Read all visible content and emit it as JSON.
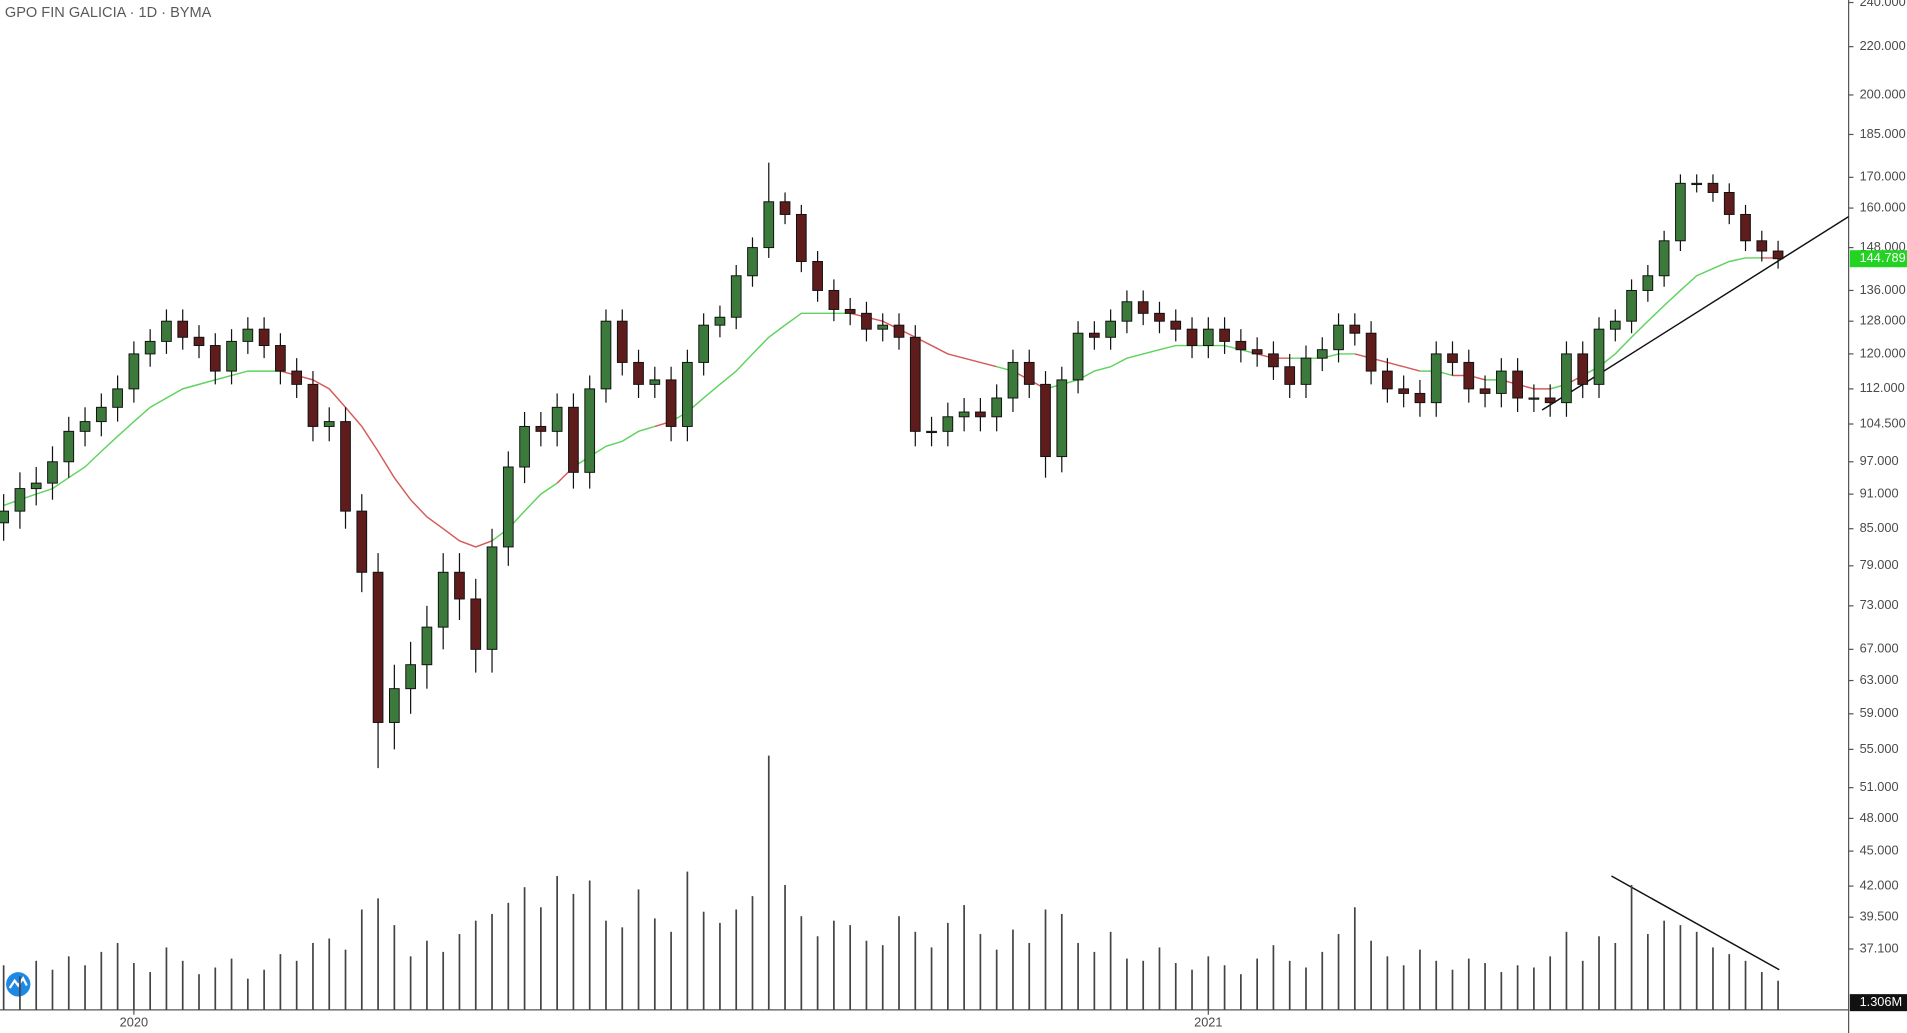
{
  "chart_data": {
    "type": "candlestick",
    "title": "GPO FIN GALICIA · 1D · BYMA",
    "log_scale": true,
    "up_color": "#3c7a3c",
    "down_color": "#5e1c1c",
    "ma_up_color": "#5fd35f",
    "ma_down_color": "#d65a5a",
    "volume_color": "#444444",
    "last_price_color": "#22d322",
    "categories": [
      null,
      null,
      null,
      null,
      null,
      null,
      null,
      null,
      "2020",
      null,
      null,
      null,
      null,
      null,
      null,
      null,
      null,
      null,
      null,
      null,
      null,
      null,
      null,
      null,
      null,
      null,
      null,
      null,
      null,
      null,
      null,
      null,
      null,
      null,
      null,
      null,
      null,
      null,
      null,
      null,
      null,
      null,
      null,
      null,
      null,
      null,
      null,
      null,
      null,
      null,
      null,
      null,
      null,
      null,
      null,
      null,
      null,
      null,
      null,
      null,
      null,
      null,
      null,
      null,
      null,
      null,
      null,
      null,
      null,
      null,
      null,
      null,
      null,
      null,
      "2021",
      null,
      null,
      null,
      null,
      null,
      null,
      null,
      null,
      null,
      null,
      null,
      null,
      null,
      null,
      null,
      null,
      null,
      null,
      null,
      null,
      null,
      null,
      null,
      null,
      null,
      null,
      null,
      null,
      null,
      null,
      null,
      null,
      null,
      null,
      null
    ],
    "open": [
      86,
      88,
      92,
      93,
      97,
      103,
      105,
      108,
      112,
      120,
      123,
      128,
      124,
      122,
      116,
      123,
      126,
      122,
      116,
      113,
      104,
      105,
      88,
      78,
      58,
      62,
      65,
      70,
      78,
      74,
      67,
      82,
      96,
      104,
      103,
      108,
      95,
      112,
      128,
      118,
      113,
      114,
      104,
      118,
      127,
      129,
      140,
      148,
      162,
      158,
      144,
      136,
      131,
      130,
      126,
      127,
      124,
      103,
      103,
      106,
      107,
      106,
      110,
      118,
      113,
      98,
      114,
      125,
      124,
      128,
      133,
      130,
      128,
      126,
      122,
      126,
      123,
      121,
      120,
      117,
      113,
      119,
      121,
      127,
      125,
      116,
      112,
      111,
      109,
      120,
      118,
      112,
      111,
      116,
      110,
      110,
      109,
      120,
      113,
      126,
      128,
      136,
      140,
      150,
      168,
      168,
      165,
      158,
      150,
      147
    ],
    "high": [
      91,
      95,
      96,
      100,
      106,
      108,
      111,
      115,
      123,
      126,
      131,
      131,
      127,
      125,
      126,
      129,
      129,
      125,
      119,
      116,
      108,
      108,
      91,
      81,
      65,
      68,
      73,
      81,
      81,
      77,
      85,
      99,
      107,
      107,
      111,
      111,
      115,
      131,
      131,
      121,
      117,
      117,
      121,
      130,
      132,
      143,
      151,
      175,
      165,
      161,
      147,
      139,
      134,
      133,
      130,
      130,
      127,
      106,
      109,
      110,
      110,
      113,
      121,
      121,
      116,
      117,
      128,
      128,
      131,
      136,
      136,
      133,
      131,
      129,
      129,
      129,
      126,
      124,
      123,
      120,
      122,
      124,
      130,
      130,
      128,
      119,
      115,
      114,
      123,
      123,
      121,
      115,
      119,
      119,
      113,
      113,
      123,
      123,
      129,
      131,
      139,
      143,
      153,
      171,
      171,
      171,
      168,
      161,
      153,
      150
    ],
    "low": [
      83,
      85,
      89,
      90,
      94,
      100,
      102,
      105,
      109,
      117,
      120,
      121,
      119,
      113,
      113,
      120,
      119,
      113,
      110,
      101,
      101,
      85,
      75,
      53,
      55,
      59,
      62,
      67,
      71,
      64,
      64,
      79,
      93,
      100,
      100,
      92,
      92,
      109,
      115,
      110,
      110,
      101,
      101,
      115,
      124,
      126,
      137,
      145,
      155,
      141,
      133,
      128,
      127,
      123,
      123,
      121,
      100,
      100,
      100,
      103,
      103,
      103,
      107,
      110,
      94,
      95,
      111,
      121,
      121,
      125,
      127,
      125,
      123,
      119,
      119,
      120,
      118,
      117,
      114,
      110,
      110,
      116,
      118,
      122,
      113,
      109,
      108,
      106,
      106,
      115,
      109,
      108,
      108,
      107,
      107,
      106,
      106,
      110,
      110,
      123,
      125,
      133,
      137,
      147,
      165,
      162,
      155,
      147,
      144,
      142
    ],
    "close": [
      88,
      92,
      93,
      97,
      103,
      105,
      108,
      112,
      120,
      123,
      128,
      124,
      122,
      116,
      123,
      126,
      122,
      116,
      113,
      104,
      105,
      88,
      78,
      58,
      62,
      65,
      70,
      78,
      74,
      67,
      82,
      96,
      104,
      103,
      108,
      95,
      112,
      128,
      118,
      113,
      114,
      104,
      118,
      127,
      129,
      140,
      148,
      162,
      158,
      144,
      136,
      131,
      130,
      126,
      127,
      124,
      103,
      103,
      106,
      107,
      106,
      110,
      118,
      113,
      98,
      114,
      125,
      124,
      128,
      133,
      130,
      128,
      126,
      122,
      126,
      123,
      121,
      120,
      117,
      113,
      119,
      121,
      127,
      125,
      116,
      112,
      111,
      109,
      120,
      118,
      112,
      111,
      116,
      110,
      110,
      109,
      120,
      113,
      126,
      128,
      136,
      140,
      150,
      168,
      168,
      165,
      158,
      150,
      147,
      144.789
    ],
    "ma": [
      89,
      90,
      91,
      92,
      94,
      96,
      99,
      102,
      105,
      108,
      110,
      112,
      113,
      114,
      115,
      116,
      116,
      116,
      115,
      114,
      112,
      108,
      104,
      99,
      94,
      90,
      87,
      85,
      83,
      82,
      83,
      85,
      88,
      91,
      93,
      96,
      98,
      100,
      101,
      103,
      104,
      105,
      107,
      110,
      113,
      116,
      120,
      124,
      127,
      130,
      130,
      130,
      130,
      129,
      128,
      126,
      124,
      122,
      120,
      119,
      118,
      117,
      116,
      114,
      112,
      113,
      114,
      116,
      117,
      119,
      120,
      121,
      122,
      122,
      122,
      122,
      121,
      120,
      119,
      119,
      119,
      119,
      120,
      120,
      119,
      118,
      117,
      116,
      116,
      115,
      115,
      114,
      114,
      113,
      112,
      112,
      113,
      115,
      117,
      120,
      124,
      128,
      132,
      136,
      140,
      142,
      144,
      145,
      145,
      145
    ],
    "volume": [
      2.0,
      1.5,
      2.2,
      1.8,
      2.4,
      2.0,
      2.6,
      3.0,
      2.1,
      1.7,
      2.8,
      2.2,
      1.6,
      1.9,
      2.3,
      1.4,
      1.8,
      2.5,
      2.2,
      3.0,
      3.2,
      2.7,
      4.5,
      5.0,
      3.8,
      2.4,
      3.1,
      2.6,
      3.4,
      4.0,
      4.3,
      4.8,
      5.5,
      4.6,
      6.0,
      5.2,
      5.8,
      4.0,
      3.7,
      5.4,
      4.1,
      3.5,
      6.2,
      4.4,
      3.9,
      4.5,
      5.1,
      11.4,
      5.6,
      4.2,
      3.3,
      4.0,
      3.8,
      3.1,
      2.9,
      4.2,
      3.5,
      2.8,
      3.9,
      4.7,
      3.4,
      2.7,
      3.6,
      3.0,
      4.5,
      4.3,
      3.0,
      2.6,
      3.5,
      2.3,
      2.2,
      2.8,
      2.1,
      1.8,
      2.4,
      2.0,
      1.6,
      2.3,
      2.9,
      2.2,
      1.9,
      2.6,
      3.4,
      4.6,
      3.1,
      2.4,
      2.0,
      2.7,
      2.2,
      1.8,
      2.3,
      2.1,
      1.7,
      2.0,
      1.9,
      2.4,
      3.5,
      2.2,
      3.3,
      3.0,
      5.6,
      3.4,
      4.0,
      3.8,
      3.5,
      2.8,
      2.5,
      2.2,
      1.7,
      1.306
    ],
    "volume_last_label": "1.306M",
    "volume_lim": [
      0,
      12
    ],
    "ylim": [
      32.9,
      241.2
    ],
    "yticks": [
      {
        "value": 240,
        "label": "240.000"
      },
      {
        "value": 220,
        "label": "220.000"
      },
      {
        "value": 200,
        "label": "200.000"
      },
      {
        "value": 185,
        "label": "185.000"
      },
      {
        "value": 170,
        "label": "170.000"
      },
      {
        "value": 160,
        "label": "160.000"
      },
      {
        "value": 148,
        "label": "148.000"
      },
      {
        "value": 136,
        "label": "136.000"
      },
      {
        "value": 128,
        "label": "128.000"
      },
      {
        "value": 120,
        "label": "120.000"
      },
      {
        "value": 112,
        "label": "112.000"
      },
      {
        "value": 104.5,
        "label": "104.500"
      },
      {
        "value": 97,
        "label": "97.000"
      },
      {
        "value": 91,
        "label": "91.000"
      },
      {
        "value": 85,
        "label": "85.000"
      },
      {
        "value": 79,
        "label": "79.000"
      },
      {
        "value": 73,
        "label": "73.000"
      },
      {
        "value": 67,
        "label": "67.000"
      },
      {
        "value": 63,
        "label": "63.000"
      },
      {
        "value": 59,
        "label": "59.000"
      },
      {
        "value": 55,
        "label": "55.000"
      },
      {
        "value": 51,
        "label": "51.000"
      },
      {
        "value": 48,
        "label": "48.000"
      },
      {
        "value": 45,
        "label": "45.000"
      },
      {
        "value": 42,
        "label": "42.000"
      },
      {
        "value": 39.5,
        "label": "39.500"
      },
      {
        "value": 37.1,
        "label": "37.100"
      }
    ]
  }
}
